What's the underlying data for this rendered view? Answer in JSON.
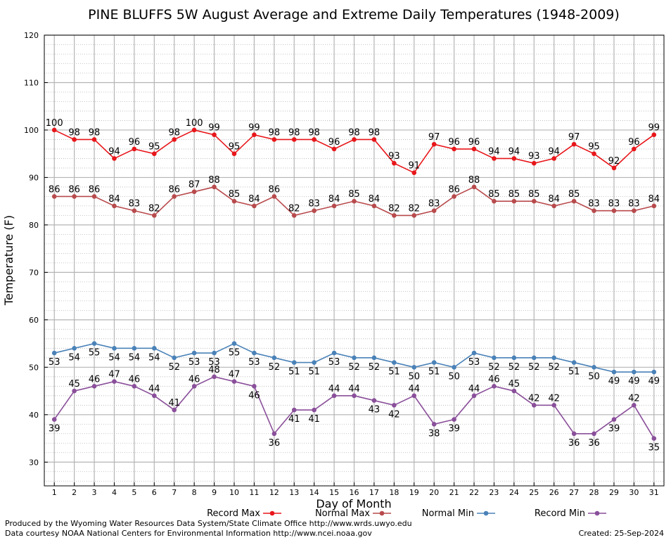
{
  "chart_data": {
    "type": "line",
    "title": "PINE BLUFFS 5W August Average and Extreme Daily Temperatures (1948-2009)",
    "xlabel": "Day of Month",
    "ylabel": "Temperature (F)",
    "x": [
      1,
      2,
      3,
      4,
      5,
      6,
      7,
      8,
      9,
      10,
      11,
      12,
      13,
      14,
      15,
      16,
      17,
      18,
      19,
      20,
      21,
      22,
      23,
      24,
      25,
      26,
      27,
      28,
      29,
      30,
      31
    ],
    "xlim": [
      0.5,
      31.5
    ],
    "ylim": [
      25,
      120
    ],
    "yticks": [
      30,
      40,
      50,
      60,
      70,
      80,
      90,
      100,
      110,
      120
    ],
    "grid": true,
    "legend_position": "bottom",
    "series": [
      {
        "name": "Record Max",
        "color": "#e8161a",
        "label_position": "above",
        "values": [
          100,
          98,
          98,
          94,
          96,
          95,
          98,
          100,
          99,
          95,
          99,
          98,
          98,
          98,
          96,
          98,
          98,
          93,
          91,
          97,
          96,
          96,
          94,
          94,
          93,
          94,
          97,
          95,
          92,
          96,
          99
        ]
      },
      {
        "name": "Normal Max",
        "color": "#b84a4c",
        "label_position": "above",
        "values": [
          86,
          86,
          86,
          84,
          83,
          82,
          86,
          87,
          88,
          85,
          84,
          86,
          82,
          83,
          84,
          85,
          84,
          82,
          82,
          83,
          86,
          88,
          85,
          85,
          85,
          84,
          85,
          83,
          83,
          83,
          84
        ]
      },
      {
        "name": "Normal Min",
        "color": "#4a82b8",
        "label_position": "below",
        "values": [
          53,
          54,
          55,
          54,
          54,
          54,
          52,
          53,
          53,
          55,
          53,
          52,
          51,
          51,
          53,
          52,
          52,
          51,
          50,
          51,
          50,
          53,
          52,
          52,
          52,
          52,
          51,
          50,
          49,
          49,
          49
        ]
      },
      {
        "name": "Record Min",
        "color": "#8a4f9a",
        "label_position": "mixed",
        "label_below": [
          1,
          11,
          12,
          13,
          14,
          17,
          18,
          20,
          21,
          27,
          28,
          29,
          31
        ],
        "values": [
          39,
          45,
          46,
          47,
          46,
          44,
          41,
          46,
          48,
          47,
          46,
          36,
          41,
          41,
          44,
          44,
          43,
          42,
          44,
          38,
          39,
          44,
          46,
          45,
          42,
          42,
          36,
          36,
          39,
          42,
          35
        ]
      }
    ]
  },
  "footer": {
    "credit_line_1": "Produced by the Wyoming Water Resources Data System/State Climate Office http://www.wrds.uwyo.edu",
    "credit_line_2": "Data courtesy NOAA National Centers for Environmental Information http://www.ncei.noaa.gov",
    "created": "Created:  25-Sep-2024"
  }
}
